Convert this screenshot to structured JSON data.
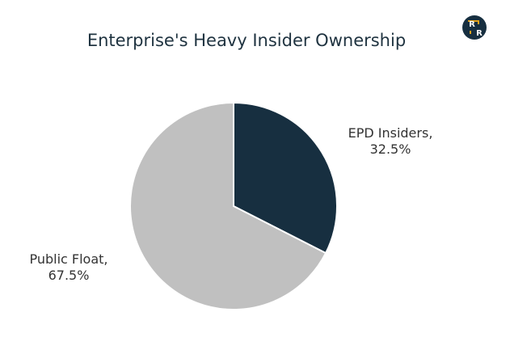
{
  "chart_data": {
    "type": "pie",
    "title": "Enterprise's Heavy Insider Ownership",
    "slices": [
      {
        "label": "EPD Insiders",
        "value": 32.5,
        "value_text": "32.5%",
        "color": "#172f40"
      },
      {
        "label": "Public Float",
        "value": 67.5,
        "value_text": "67.5%",
        "color": "#c0c0c0"
      }
    ],
    "start_angle": "12 o'clock",
    "direction": "clockwise",
    "slice_border_color": "#ffffff"
  },
  "logo": {
    "letter_top": "R",
    "letter_bottom": "R",
    "background": "#172f40",
    "accent": "#e0a21c"
  }
}
